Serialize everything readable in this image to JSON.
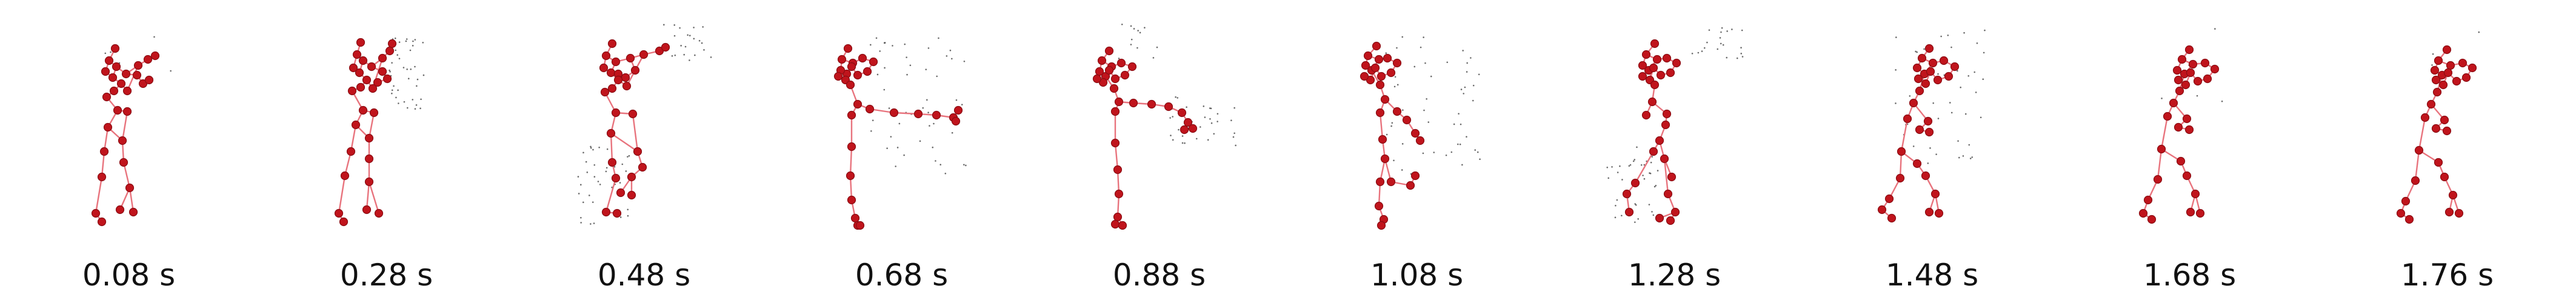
{
  "colors": {
    "bone": "#e8737d",
    "joint": "#c0141c",
    "joint_outline": "#8a0d13",
    "scatter": "#3a3a3a",
    "caption": "#111111"
  },
  "frames": [
    {
      "label": "0.08 s",
      "pose": "boxing-guard-high",
      "scatter": "sparse"
    },
    {
      "label": "0.28 s",
      "pose": "boxing-guard-wind",
      "scatter": "right-cluster"
    },
    {
      "label": "0.48 s",
      "pose": "stepping-cross",
      "scatter": "left-legs"
    },
    {
      "label": "0.68 s",
      "pose": "arm-extended-right",
      "scatter": "right-spread"
    },
    {
      "label": "0.88 s",
      "pose": "arm-extended-mid",
      "scatter": "right-far"
    },
    {
      "label": "1.08 s",
      "pose": "knee-raise",
      "scatter": "right-spread"
    },
    {
      "label": "1.28 s",
      "pose": "crouch-step",
      "scatter": "left-legs"
    },
    {
      "label": "1.48 s",
      "pose": "guard-lean",
      "scatter": "mid-cluster"
    },
    {
      "label": "1.68 s",
      "pose": "guard-stance",
      "scatter": "sparse"
    },
    {
      "label": "1.76 s",
      "pose": "guard-stance-final",
      "scatter": "sparse"
    }
  ]
}
